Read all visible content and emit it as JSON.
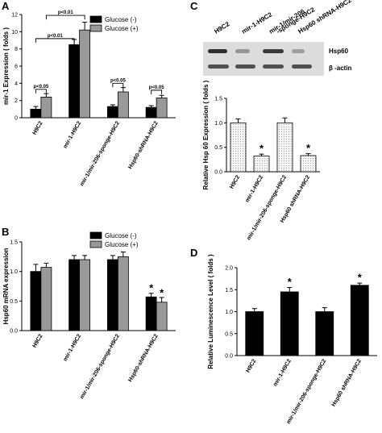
{
  "figure": {
    "panels": [
      "A",
      "B",
      "C",
      "D"
    ]
  },
  "chart_data": [
    {
      "panel": "A",
      "type": "bar",
      "ylabel": "mir-1 Expression ( folds )",
      "ylim": [
        0,
        12
      ],
      "yticks": [
        "0",
        "2",
        "4",
        "6",
        "8",
        "10",
        "12"
      ],
      "categories": [
        "H9C2",
        "mir-1-H9C2",
        "mir-1/mir-206-sponge-H9C2",
        "Hsp60-shRNA-H9C2"
      ],
      "series": [
        {
          "name": "Glucose (-)",
          "color": "#000000",
          "values": [
            1.0,
            8.5,
            1.3,
            1.2
          ],
          "errors": [
            0.3,
            0.6,
            0.2,
            0.2
          ]
        },
        {
          "name": "Glucose (+)",
          "color": "#999999",
          "values": [
            2.4,
            10.2,
            3.0,
            2.3
          ],
          "errors": [
            0.4,
            0.9,
            0.5,
            0.3
          ]
        }
      ],
      "legend_position": "top-right",
      "annotations": [
        "p<0.05",
        "p<0.01",
        "p<0.01",
        "p<0.05",
        "p<0.05"
      ]
    },
    {
      "panel": "B",
      "type": "bar",
      "ylabel": "Hsp60 mRNA expression",
      "ylim": [
        0,
        1.5
      ],
      "yticks": [
        "0.0",
        "0.5",
        "1.0",
        "1.5"
      ],
      "categories": [
        "H9C2",
        "mir-1-H9C2",
        "mir-1/mir-206-sponge-H9C2",
        "Hsp60-shRNA-H9C2"
      ],
      "series": [
        {
          "name": "Glucose (-)",
          "color": "#000000",
          "values": [
            1.0,
            1.2,
            1.2,
            0.57
          ],
          "errors": [
            0.12,
            0.07,
            0.07,
            0.06
          ]
        },
        {
          "name": "Glucose (+)",
          "color": "#999999",
          "values": [
            1.07,
            1.2,
            1.25,
            0.48
          ],
          "errors": [
            0.07,
            0.07,
            0.08,
            0.08
          ]
        }
      ],
      "legend_position": "top-right",
      "stars": [
        "*",
        "*"
      ]
    },
    {
      "panel": "C",
      "type": "bar",
      "ylabel": "Relative Hsp 60 Expression ( folds )",
      "ylim": [
        0,
        1.5
      ],
      "yticks": [
        "0.0",
        "0.5",
        "1.0",
        "1.5"
      ],
      "categories": [
        "H9C2",
        "mir-1-H9C2",
        "mir-1/mir-206-sponge-H9C2",
        "Hsp60 shRNA-H9C2"
      ],
      "series": [
        {
          "name": "",
          "color": "#e6e6e6",
          "values": [
            1.0,
            0.32,
            1.0,
            0.33
          ],
          "errors": [
            0.08,
            0.04,
            0.1,
            0.04
          ]
        }
      ],
      "stars": [
        "*",
        "*"
      ],
      "blot": {
        "lanes": [
          "H9C2",
          "mir-1-H9C2",
          "mir-1/mir-206-sponge-H9C2",
          "Hsp60 shRNA-H9C2"
        ],
        "lane_labels": [
          "H9C2",
          "mir-1-H9C2",
          "mir-1/mir-206\n-sponge-H9C2",
          "Hsp60 shRNA-H9C2"
        ],
        "bands": [
          "Hsp60",
          "β -actin"
        ]
      }
    },
    {
      "panel": "D",
      "type": "bar",
      "ylabel": "Relative Luminescence Level ( folds )",
      "ylim": [
        0,
        2.0
      ],
      "yticks": [
        "0.0",
        "0.5",
        "1.0",
        "1.5",
        "2.0"
      ],
      "categories": [
        "H9C2",
        "mir-1-H9C2",
        "mir-1/mir-206-sponge-H9C2",
        "Hsp60 shRNA-H9C2"
      ],
      "series": [
        {
          "name": "",
          "color": "#000000",
          "values": [
            1.0,
            1.45,
            1.0,
            1.6
          ],
          "errors": [
            0.07,
            0.1,
            0.09,
            0.05
          ]
        }
      ],
      "stars": [
        "*",
        "*"
      ]
    }
  ]
}
